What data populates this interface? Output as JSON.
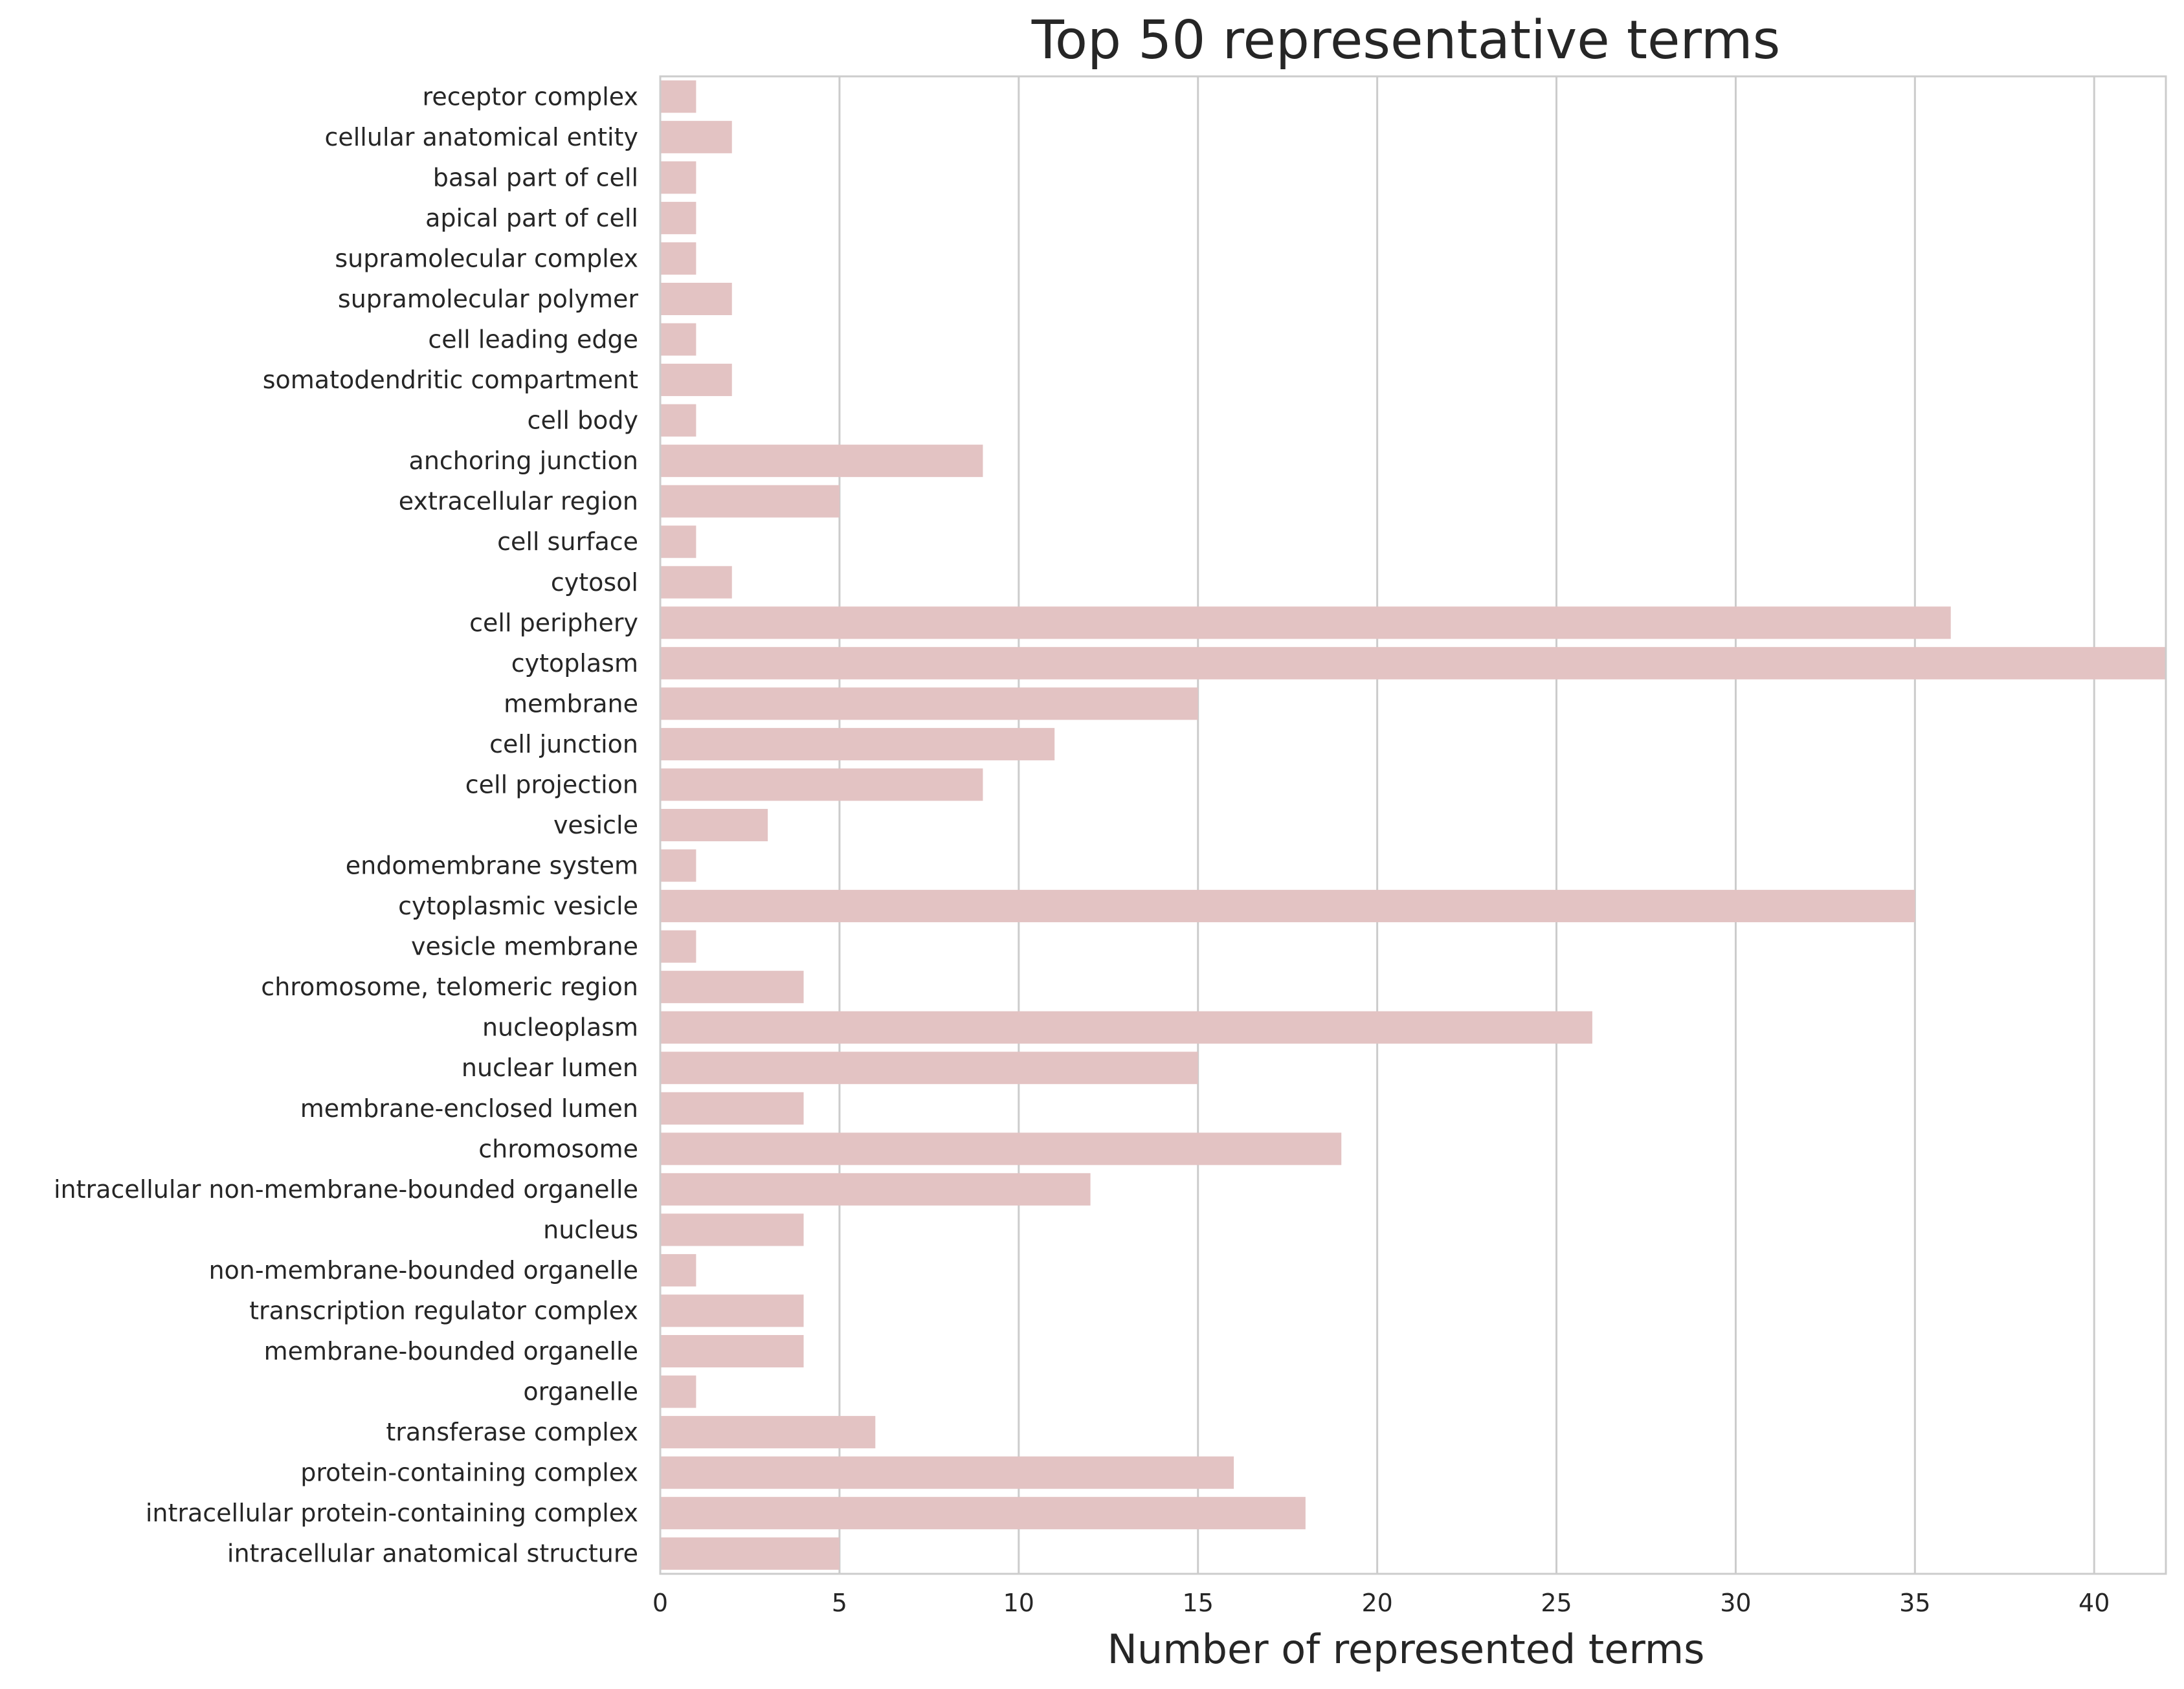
{
  "chart_data": {
    "type": "bar",
    "orientation": "horizontal",
    "title": "Top 50 representative terms",
    "xlabel": "Number of represented terms",
    "ylabel": "",
    "xlim": [
      0,
      42
    ],
    "xticks": [
      0,
      5,
      10,
      15,
      20,
      25,
      30,
      35,
      40
    ],
    "grid": true,
    "bar_color": "#e3c3c3",
    "categories": [
      "receptor complex",
      "cellular anatomical entity",
      "basal part of cell",
      "apical part of cell",
      "supramolecular complex",
      "supramolecular polymer",
      "cell leading edge",
      "somatodendritic compartment",
      "cell body",
      "anchoring junction",
      "extracellular region",
      "cell surface",
      "cytosol",
      "cell periphery",
      "cytoplasm",
      "membrane",
      "cell junction",
      "cell projection",
      "vesicle",
      "endomembrane system",
      "cytoplasmic vesicle",
      "vesicle membrane",
      "chromosome, telomeric region",
      "nucleoplasm",
      "nuclear lumen",
      "membrane-enclosed lumen",
      "chromosome",
      "intracellular non-membrane-bounded organelle",
      "nucleus",
      "non-membrane-bounded organelle",
      "transcription regulator complex",
      "membrane-bounded organelle",
      "organelle",
      "transferase complex",
      "protein-containing complex",
      "intracellular protein-containing complex",
      "intracellular anatomical structure"
    ],
    "values": [
      1,
      2,
      1,
      1,
      1,
      2,
      1,
      2,
      1,
      9,
      5,
      1,
      2,
      36,
      42,
      15,
      11,
      9,
      3,
      1,
      35,
      1,
      4,
      26,
      15,
      4,
      19,
      12,
      4,
      1,
      4,
      4,
      1,
      6,
      16,
      18,
      5
    ]
  }
}
